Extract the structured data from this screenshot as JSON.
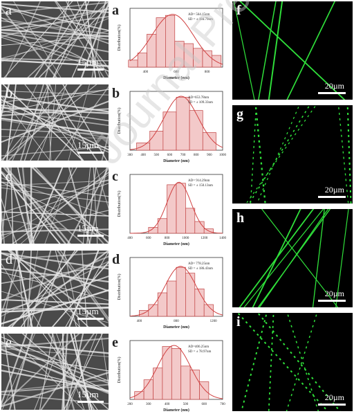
{
  "sem_panels": [
    {
      "letter": "a",
      "scale": "15µm"
    },
    {
      "letter": "b",
      "scale": "15µm"
    },
    {
      "letter": "c",
      "scale": "15µm"
    },
    {
      "letter": "d",
      "scale": "15µm"
    },
    {
      "letter": "e",
      "scale": "15µm"
    }
  ],
  "fluo_panels": [
    {
      "letter": "f",
      "scale": "20µm"
    },
    {
      "letter": "g",
      "scale": "20µm"
    },
    {
      "letter": "h",
      "scale": "20µm"
    },
    {
      "letter": "i",
      "scale": "20µm"
    }
  ],
  "chart_data": [
    {
      "type": "bar",
      "letter": "a",
      "ylabel": "Distribution(%)",
      "xlabel": "Diameter (nm)",
      "stat1": "AD= 564.15nm",
      "stat2": "SD = ± 184.79nm",
      "xlim": [
        300,
        900
      ],
      "ylim": [
        0,
        25
      ],
      "xticks": [
        "400",
        "600",
        "800"
      ],
      "bins": [
        320,
        380,
        440,
        500,
        560,
        620,
        680,
        740,
        800,
        860
      ],
      "values": [
        3,
        6,
        14,
        21,
        22,
        11,
        10,
        8,
        7,
        5
      ]
    },
    {
      "type": "bar",
      "letter": "b",
      "ylabel": "Distribution(%)",
      "xlabel": "Diameter (nm)",
      "stat1": "AD=653.78nm",
      "stat2": "SD = ± 109.33nm",
      "xlim": [
        300,
        1000
      ],
      "ylim": [
        0,
        40
      ],
      "xticks": [
        "300",
        "400",
        "500",
        "600",
        "700",
        "800",
        "900",
        "1000"
      ],
      "bins": [
        400,
        500,
        600,
        700,
        800,
        900
      ],
      "values": [
        5,
        13,
        26,
        36,
        27,
        12
      ]
    },
    {
      "type": "bar",
      "letter": "c",
      "ylabel": "Distribution(%)",
      "xlabel": "Diameter (nm)",
      "stat1": "AD= 914.29nm",
      "stat2": "SD = ± 150.13nm",
      "xlim": [
        400,
        1400
      ],
      "ylim": [
        0,
        40
      ],
      "xticks": [
        "400",
        "600",
        "800",
        "1000",
        "1200",
        "1400"
      ],
      "bins": [
        650,
        750,
        850,
        950,
        1050,
        1150,
        1250
      ],
      "values": [
        4,
        10,
        33,
        34,
        17,
        8,
        3
      ]
    },
    {
      "type": "bar",
      "letter": "d",
      "ylabel": "Distribution(%)",
      "xlabel": "Diameter (nm)",
      "stat1": "AD= 778.25nm",
      "stat2": "SD = ± 186.43nm",
      "xlim": [
        300,
        1300
      ],
      "ylim": [
        0,
        30
      ],
      "xticks": [
        "400",
        "800",
        "1200"
      ],
      "bins": [
        450,
        550,
        650,
        750,
        850,
        950,
        1050,
        1150
      ],
      "values": [
        3,
        6,
        12,
        18,
        25,
        22,
        14,
        6
      ]
    },
    {
      "type": "bar",
      "letter": "e",
      "ylabel": "Distribution(%)",
      "xlabel": "Diameter (nm)",
      "stat1": "AD=406.25nm",
      "stat2": "SD = ± 78.97nm",
      "xlim": [
        200,
        700
      ],
      "ylim": [
        0,
        30
      ],
      "xticks": [
        "200",
        "300",
        "400",
        "500",
        "600",
        "700"
      ],
      "bins": [
        250,
        300,
        350,
        400,
        450,
        500,
        550,
        600
      ],
      "values": [
        4,
        10,
        16,
        27,
        26,
        17,
        15,
        9
      ]
    }
  ],
  "watermark": "Journal Pre-proof"
}
